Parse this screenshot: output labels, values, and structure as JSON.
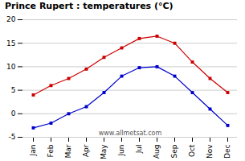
{
  "chart_data": {
    "type": "line",
    "title": "Prince Rupert : temperatures (°C)",
    "categories": [
      "Jan",
      "Feb",
      "Mar",
      "Apr",
      "May",
      "Jun",
      "Jul",
      "Aug",
      "Sep",
      "Oct",
      "Nov",
      "Dec"
    ],
    "series": [
      {
        "color": "#cc0000",
        "marker": "square",
        "values": [
          4,
          6,
          7.5,
          9.5,
          12,
          14,
          16,
          16.5,
          15,
          11,
          7.5,
          4.5
        ]
      },
      {
        "color": "#0000cc",
        "marker": "square",
        "values": [
          -3,
          -2,
          0,
          1.5,
          4.5,
          8,
          9.8,
          10,
          8,
          4.5,
          1,
          -2.5
        ]
      }
    ],
    "ylim": [
      -5,
      20
    ],
    "yticks": [
      -5,
      0,
      5,
      10,
      15,
      20
    ],
    "grid": true,
    "annotations": [
      "www.allmetsat.com"
    ]
  }
}
